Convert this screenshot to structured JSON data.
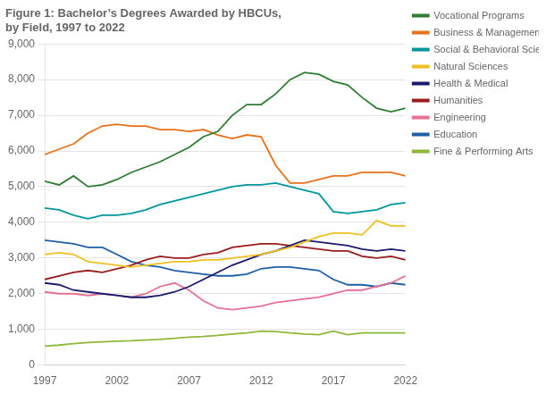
{
  "chart_data": {
    "type": "line",
    "title": [
      "Figure 1: Bachelor’s Degrees Awarded by HBCUs,",
      "by Field, 1997 to 2022"
    ],
    "x": [
      1997,
      1998,
      1999,
      2000,
      2001,
      2002,
      2003,
      2004,
      2005,
      2006,
      2007,
      2008,
      2009,
      2010,
      2011,
      2012,
      2013,
      2014,
      2015,
      2016,
      2017,
      2018,
      2019,
      2020,
      2021,
      2022
    ],
    "series": [
      {
        "name": "Vocational Programs",
        "color": "#2e7d32",
        "values": [
          5150,
          5050,
          5300,
          5000,
          5050,
          5200,
          5400,
          5550,
          5700,
          5900,
          6100,
          6400,
          6550,
          7000,
          7300,
          7300,
          7600,
          8000,
          8200,
          8150,
          7950,
          7850,
          7500,
          7200,
          7100,
          7200
        ]
      },
      {
        "name": "Business & Management",
        "color": "#e8711a",
        "values": [
          5900,
          6050,
          6200,
          6500,
          6700,
          6750,
          6700,
          6700,
          6600,
          6600,
          6550,
          6600,
          6450,
          6350,
          6450,
          6400,
          5600,
          5100,
          5100,
          5200,
          5300,
          5300,
          5400,
          5400,
          5400,
          5300
        ]
      },
      {
        "name": "Social & Behavioral Sciences",
        "color": "#00979d",
        "values": [
          4400,
          4350,
          4200,
          4100,
          4200,
          4200,
          4250,
          4350,
          4500,
          4600,
          4700,
          4800,
          4900,
          5000,
          5050,
          5050,
          5100,
          5000,
          4900,
          4800,
          4300,
          4250,
          4300,
          4350,
          4500,
          4550
        ]
      },
      {
        "name": "Natural Sciences",
        "color": "#f0c020",
        "values": [
          3100,
          3150,
          3100,
          2900,
          2850,
          2800,
          2750,
          2800,
          2850,
          2900,
          2900,
          2950,
          2950,
          3000,
          3050,
          3100,
          3200,
          3300,
          3450,
          3600,
          3700,
          3700,
          3650,
          4050,
          3900,
          3900
        ]
      },
      {
        "name": "Health & Medical",
        "color": "#1a1a6e",
        "values": [
          2300,
          2250,
          2100,
          2050,
          2000,
          1950,
          1900,
          1900,
          1950,
          2050,
          2200,
          2400,
          2600,
          2800,
          2950,
          3100,
          3200,
          3350,
          3500,
          3450,
          3400,
          3350,
          3250,
          3200,
          3250,
          3200
        ]
      },
      {
        "name": "Humanities",
        "color": "#9b1c1c",
        "values": [
          2400,
          2500,
          2600,
          2650,
          2600,
          2700,
          2800,
          2950,
          3050,
          3000,
          3000,
          3100,
          3150,
          3300,
          3350,
          3400,
          3400,
          3350,
          3300,
          3250,
          3200,
          3200,
          3050,
          3000,
          3050,
          2950
        ]
      },
      {
        "name": "Engineering",
        "color": "#e87090",
        "values": [
          2050,
          2000,
          2000,
          1950,
          2000,
          1950,
          1900,
          2000,
          2200,
          2300,
          2100,
          1800,
          1600,
          1550,
          1600,
          1650,
          1750,
          1800,
          1850,
          1900,
          2000,
          2100,
          2100,
          2200,
          2300,
          2500
        ]
      },
      {
        "name": "Education",
        "color": "#1e5fa8",
        "values": [
          3500,
          3450,
          3400,
          3300,
          3300,
          3100,
          2900,
          2800,
          2750,
          2650,
          2600,
          2550,
          2500,
          2500,
          2550,
          2700,
          2750,
          2750,
          2700,
          2650,
          2400,
          2250,
          2250,
          2200,
          2300,
          2250
        ]
      },
      {
        "name": "Fine & Performing Arts",
        "color": "#8db83a",
        "values": [
          530,
          560,
          600,
          630,
          650,
          670,
          680,
          700,
          720,
          750,
          780,
          800,
          830,
          870,
          900,
          950,
          940,
          900,
          870,
          850,
          950,
          850,
          900,
          900,
          900,
          900
        ]
      }
    ],
    "xlim": [
      1997,
      2022
    ],
    "xticks": [
      1997,
      2002,
      2007,
      2012,
      2017,
      2022
    ],
    "ylim": [
      0,
      9000
    ],
    "yticks": [
      0,
      {
        "value": 1000,
        "label": "1,000"
      },
      {
        "value": 2000,
        "label": "2,000"
      },
      {
        "value": 3000,
        "label": "3,000"
      },
      {
        "value": 4000,
        "label": "4,000"
      },
      {
        "value": 5000,
        "label": "5,000"
      },
      {
        "value": 6000,
        "label": "6,000"
      },
      {
        "value": 7000,
        "label": "7,000"
      },
      {
        "value": 8000,
        "label": "8,000"
      },
      {
        "value": 9000,
        "label": "9,000"
      }
    ],
    "grid": "y",
    "legend": "right"
  }
}
